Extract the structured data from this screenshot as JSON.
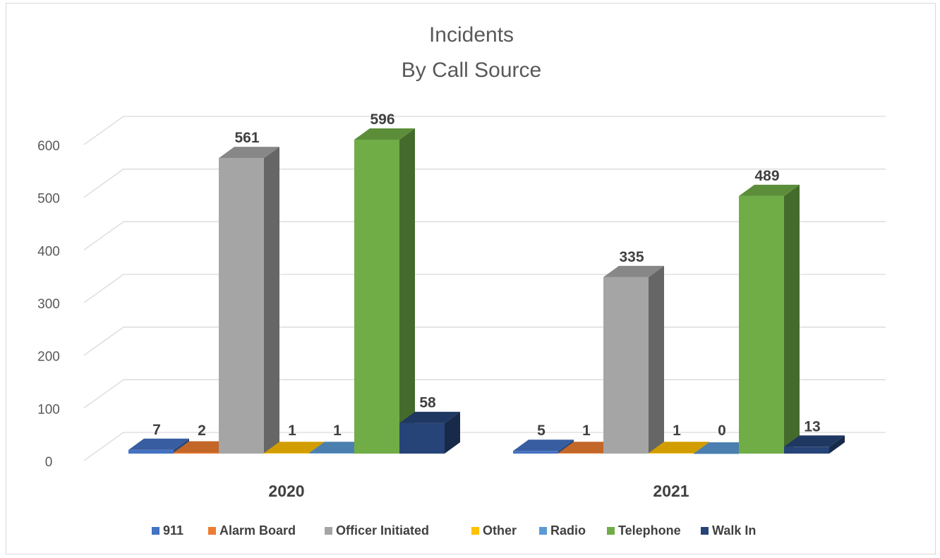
{
  "chart_data": {
    "type": "bar",
    "title": [
      "Incidents",
      "By Call Source"
    ],
    "categories": [
      "2020",
      "2021"
    ],
    "series": [
      {
        "name": "911",
        "values": [
          7,
          5
        ],
        "color": "#4472C4"
      },
      {
        "name": "Alarm Board",
        "values": [
          2,
          1
        ],
        "color": "#ED7D31"
      },
      {
        "name": "Officer Initiated",
        "values": [
          561,
          335
        ],
        "color": "#A5A5A5"
      },
      {
        "name": "Other",
        "values": [
          1,
          1
        ],
        "color": "#FFC000"
      },
      {
        "name": "Radio",
        "values": [
          1,
          0
        ],
        "color": "#5B9BD5"
      },
      {
        "name": "Telephone",
        "values": [
          596,
          489
        ],
        "color": "#70AD47"
      },
      {
        "name": "Walk In",
        "values": [
          58,
          13
        ],
        "color": "#264478"
      }
    ],
    "y_ticks": [
      "0",
      "100",
      "200",
      "300",
      "400",
      "500",
      "600"
    ],
    "ylim": [
      0,
      600
    ],
    "style": "3d-column",
    "grid": true,
    "legend_position": "bottom"
  }
}
